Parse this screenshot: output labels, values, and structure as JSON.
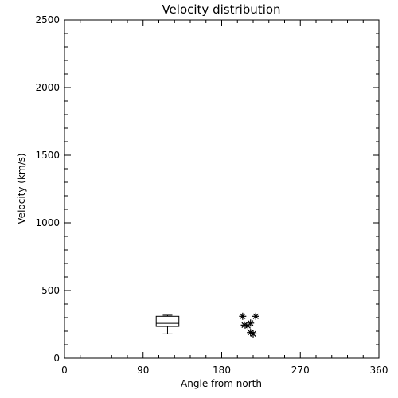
{
  "chart_data": {
    "type": "scatter",
    "title": "Velocity distribution",
    "xlabel": "Angle from north",
    "ylabel": "Velocity (km/s)",
    "xlim": [
      0,
      360
    ],
    "ylim": [
      0,
      2500
    ],
    "xticks": [
      0,
      90,
      180,
      270,
      360
    ],
    "yticks": [
      0,
      500,
      1000,
      1500,
      2000,
      2500
    ],
    "grid": false,
    "boxplot": {
      "x_min": 105,
      "x_max": 131,
      "whisker_low": 180,
      "q1": 235,
      "median": 258,
      "q3": 310,
      "whisker_high": 318
    },
    "points": [
      {
        "x": 204,
        "y": 310
      },
      {
        "x": 219,
        "y": 310
      },
      {
        "x": 206,
        "y": 245
      },
      {
        "x": 210,
        "y": 240
      },
      {
        "x": 213,
        "y": 260
      },
      {
        "x": 213,
        "y": 190
      },
      {
        "x": 216,
        "y": 180
      }
    ]
  }
}
